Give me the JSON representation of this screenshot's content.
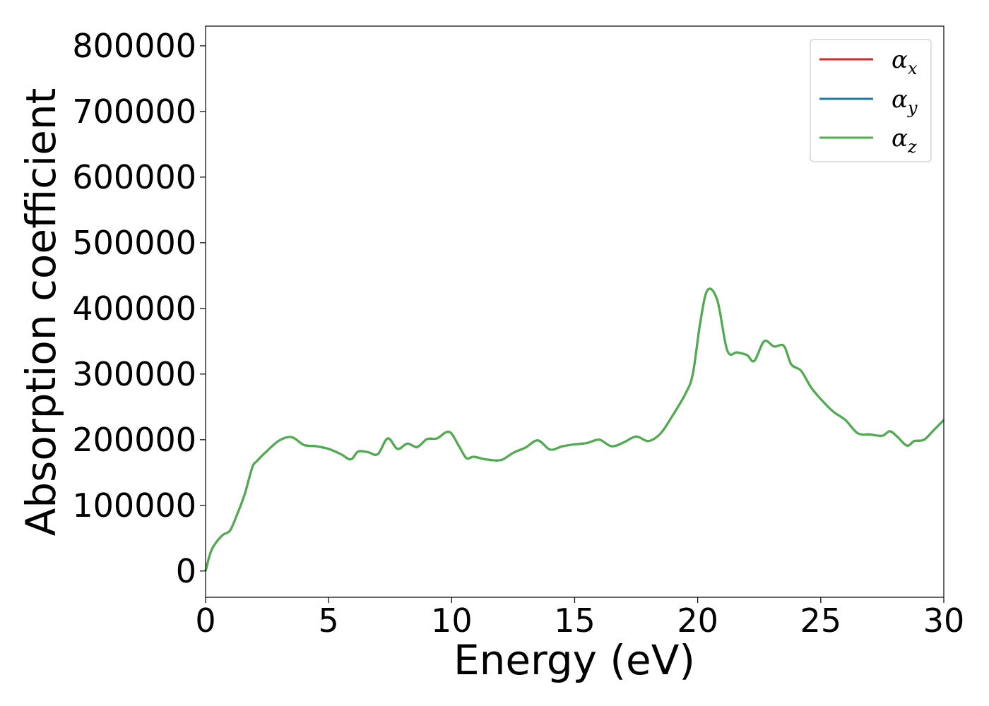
{
  "chart_data": {
    "type": "line",
    "xlabel": "Energy (eV)",
    "ylabel": "Absorption coefficient",
    "xlim": [
      0,
      30
    ],
    "ylim": [
      -40000,
      830000
    ],
    "xticks": [
      0,
      5,
      10,
      15,
      20,
      25,
      30
    ],
    "xtick_labels": [
      "0",
      "5",
      "10",
      "15",
      "20",
      "25",
      "30"
    ],
    "yticks": [
      0,
      100000,
      200000,
      300000,
      400000,
      500000,
      600000,
      700000,
      800000
    ],
    "ytick_labels": [
      "0",
      "100000",
      "200000",
      "300000",
      "400000",
      "500000",
      "600000",
      "700000",
      "800000"
    ],
    "grid": false,
    "legend_position": "top-right",
    "series_colors": [
      "#d62728",
      "#1f77b4",
      "#4daf4a"
    ],
    "series": [
      {
        "name": "α_x",
        "symbol": "α",
        "subscript": "x",
        "x": [
          0,
          0.2,
          0.4,
          0.7,
          1.0,
          1.3,
          1.6,
          1.9,
          2.1,
          2.5,
          3.0,
          3.5,
          4.0,
          4.5,
          5.0,
          5.5,
          5.9,
          6.2,
          6.6,
          7.0,
          7.4,
          7.8,
          8.2,
          8.6,
          9.0,
          9.4,
          9.9,
          10.3,
          10.6,
          10.9,
          11.4,
          12.0,
          12.5,
          13.0,
          13.5,
          14.0,
          14.5,
          15.0,
          15.5,
          16.0,
          16.5,
          17.0,
          17.5,
          18.0,
          18.5,
          19.0,
          19.5,
          19.8,
          20.1,
          20.4,
          20.8,
          21.2,
          21.6,
          22.0,
          22.3,
          22.7,
          23.1,
          23.5,
          23.8,
          24.2,
          24.6,
          25.0,
          25.5,
          26.0,
          26.5,
          27.0,
          27.5,
          27.8,
          28.1,
          28.5,
          28.8,
          29.2,
          29.6,
          30.0
        ],
        "y": [
          0,
          28000,
          42000,
          55000,
          62000,
          88000,
          118000,
          158000,
          168000,
          183000,
          199000,
          204000,
          192000,
          190000,
          186000,
          178000,
          170000,
          182000,
          181000,
          178000,
          202000,
          186000,
          194000,
          189000,
          201000,
          202000,
          212000,
          190000,
          172000,
          174000,
          170000,
          169000,
          180000,
          188000,
          199000,
          185000,
          190000,
          193000,
          195000,
          200000,
          190000,
          196000,
          205000,
          198000,
          210000,
          238000,
          270000,
          300000,
          378000,
          428000,
          412000,
          336000,
          333000,
          329000,
          320000,
          350000,
          342000,
          343000,
          315000,
          305000,
          280000,
          262000,
          243000,
          230000,
          210000,
          208000,
          206000,
          213000,
          205000,
          191000,
          198000,
          200000,
          215000,
          230000
        ]
      },
      {
        "name": "α_y",
        "symbol": "α",
        "subscript": "y",
        "x": [
          0,
          0.2,
          0.4,
          0.7,
          1.0,
          1.3,
          1.6,
          1.9,
          2.1,
          2.5,
          3.0,
          3.5,
          4.0,
          4.5,
          5.0,
          5.5,
          5.9,
          6.2,
          6.6,
          7.0,
          7.4,
          7.8,
          8.2,
          8.6,
          9.0,
          9.4,
          9.9,
          10.3,
          10.6,
          10.9,
          11.4,
          12.0,
          12.5,
          13.0,
          13.5,
          14.0,
          14.5,
          15.0,
          15.5,
          16.0,
          16.5,
          17.0,
          17.5,
          18.0,
          18.5,
          19.0,
          19.5,
          19.8,
          20.1,
          20.4,
          20.8,
          21.2,
          21.6,
          22.0,
          22.3,
          22.7,
          23.1,
          23.5,
          23.8,
          24.2,
          24.6,
          25.0,
          25.5,
          26.0,
          26.5,
          27.0,
          27.5,
          27.8,
          28.1,
          28.5,
          28.8,
          29.2,
          29.6,
          30.0
        ],
        "y": [
          0,
          28000,
          42000,
          55000,
          62000,
          88000,
          118000,
          158000,
          168000,
          183000,
          199000,
          204000,
          192000,
          190000,
          186000,
          178000,
          170000,
          182000,
          181000,
          178000,
          202000,
          186000,
          194000,
          189000,
          201000,
          202000,
          212000,
          190000,
          172000,
          174000,
          170000,
          169000,
          180000,
          188000,
          199000,
          185000,
          190000,
          193000,
          195000,
          200000,
          190000,
          196000,
          205000,
          198000,
          210000,
          238000,
          270000,
          300000,
          378000,
          428000,
          412000,
          336000,
          333000,
          329000,
          320000,
          350000,
          342000,
          343000,
          315000,
          305000,
          280000,
          262000,
          243000,
          230000,
          210000,
          208000,
          206000,
          213000,
          205000,
          191000,
          198000,
          200000,
          215000,
          230000
        ]
      },
      {
        "name": "α_z",
        "symbol": "α",
        "subscript": "z",
        "x": [
          0,
          0.2,
          0.4,
          0.7,
          1.0,
          1.3,
          1.6,
          1.9,
          2.1,
          2.5,
          3.0,
          3.5,
          4.0,
          4.5,
          5.0,
          5.5,
          5.9,
          6.2,
          6.6,
          7.0,
          7.4,
          7.8,
          8.2,
          8.6,
          9.0,
          9.4,
          9.9,
          10.3,
          10.6,
          10.9,
          11.4,
          12.0,
          12.5,
          13.0,
          13.5,
          14.0,
          14.5,
          15.0,
          15.5,
          16.0,
          16.5,
          17.0,
          17.5,
          18.0,
          18.5,
          19.0,
          19.5,
          19.8,
          20.1,
          20.4,
          20.8,
          21.2,
          21.6,
          22.0,
          22.3,
          22.7,
          23.1,
          23.5,
          23.8,
          24.2,
          24.6,
          25.0,
          25.5,
          26.0,
          26.5,
          27.0,
          27.5,
          27.8,
          28.1,
          28.5,
          28.8,
          29.2,
          29.6,
          30.0
        ],
        "y": [
          0,
          28000,
          42000,
          55000,
          62000,
          88000,
          118000,
          158000,
          168000,
          183000,
          199000,
          204000,
          192000,
          190000,
          186000,
          178000,
          170000,
          182000,
          181000,
          178000,
          202000,
          186000,
          194000,
          189000,
          201000,
          202000,
          212000,
          190000,
          172000,
          174000,
          170000,
          169000,
          180000,
          188000,
          199000,
          185000,
          190000,
          193000,
          195000,
          200000,
          190000,
          196000,
          205000,
          198000,
          210000,
          238000,
          270000,
          300000,
          378000,
          428000,
          412000,
          336000,
          333000,
          329000,
          320000,
          350000,
          342000,
          343000,
          315000,
          305000,
          280000,
          262000,
          243000,
          230000,
          210000,
          208000,
          206000,
          213000,
          205000,
          191000,
          198000,
          200000,
          215000,
          230000
        ]
      }
    ]
  }
}
